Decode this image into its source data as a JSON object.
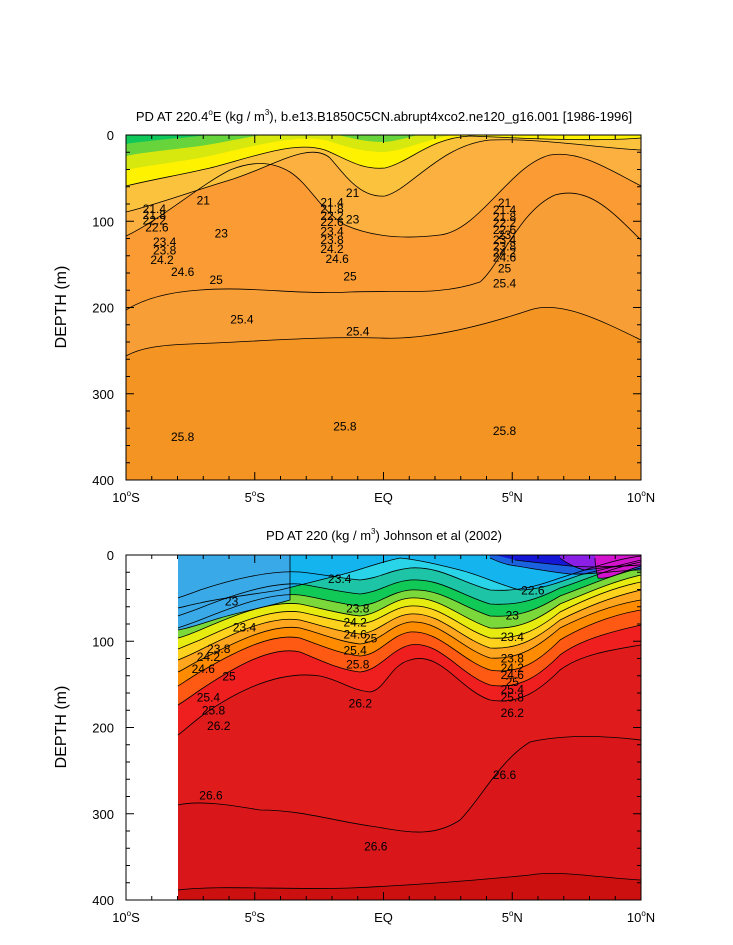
{
  "chart_data": [
    {
      "type": "contour",
      "title_main": "PD AT 220.4",
      "title_deg": "o",
      "title_mid": "E (kg / m",
      "title_sup": "3",
      "title_end": "), b.e13.B1850C5CN.abrupt4xco2.ne120_g16.001 [1986-1996]",
      "ylabel": "DEPTH (m)",
      "ylim": [
        0,
        400
      ],
      "xlim": [
        -10,
        10
      ],
      "y_ticks": [
        {
          "value": 0,
          "label": "0"
        },
        {
          "value": 100,
          "label": "100"
        },
        {
          "value": 200,
          "label": "200"
        },
        {
          "value": 300,
          "label": "300"
        },
        {
          "value": 400,
          "label": "400"
        }
      ],
      "x_ticks": [
        {
          "value": -10,
          "num": "10",
          "deg": "o",
          "hem": "S"
        },
        {
          "value": -5,
          "num": "5",
          "deg": "o",
          "hem": "S"
        },
        {
          "value": 0,
          "num": "EQ",
          "deg": "",
          "hem": ""
        },
        {
          "value": 5,
          "num": "5",
          "deg": "o",
          "hem": "N"
        },
        {
          "value": 10,
          "num": "10",
          "deg": "o",
          "hem": "N"
        }
      ],
      "data_start_lat": -10,
      "contour_labels": [
        {
          "text": "21",
          "lat": -7.0,
          "depth": 76
        },
        {
          "text": "21.4",
          "lat": -8.9,
          "depth": 86
        },
        {
          "text": "21.8",
          "lat": -8.9,
          "depth": 93
        },
        {
          "text": "22.2",
          "lat": -8.9,
          "depth": 99
        },
        {
          "text": "22.6",
          "lat": -8.8,
          "depth": 107
        },
        {
          "text": "23",
          "lat": -6.3,
          "depth": 114
        },
        {
          "text": "23.4",
          "lat": -8.5,
          "depth": 124
        },
        {
          "text": "23.8",
          "lat": -8.5,
          "depth": 134
        },
        {
          "text": "24.2",
          "lat": -8.6,
          "depth": 145
        },
        {
          "text": "24.6",
          "lat": -7.8,
          "depth": 159
        },
        {
          "text": "25",
          "lat": -6.5,
          "depth": 168
        },
        {
          "text": "25.4",
          "lat": -5.5,
          "depth": 214
        },
        {
          "text": "25.8",
          "lat": -7.8,
          "depth": 350
        },
        {
          "text": "21",
          "lat": -1.2,
          "depth": 67
        },
        {
          "text": "21.4",
          "lat": -2.0,
          "depth": 78
        },
        {
          "text": "21.8",
          "lat": -2.0,
          "depth": 86
        },
        {
          "text": "22.2",
          "lat": -2.0,
          "depth": 94
        },
        {
          "text": "22.6",
          "lat": -2.0,
          "depth": 101
        },
        {
          "text": "23",
          "lat": -1.2,
          "depth": 98
        },
        {
          "text": "23.4",
          "lat": -2.0,
          "depth": 112
        },
        {
          "text": "23.8",
          "lat": -2.0,
          "depth": 122
        },
        {
          "text": "24.2",
          "lat": -2.0,
          "depth": 132
        },
        {
          "text": "24.6",
          "lat": -1.8,
          "depth": 144
        },
        {
          "text": "25",
          "lat": -1.3,
          "depth": 164
        },
        {
          "text": "25.4",
          "lat": -1.0,
          "depth": 228
        },
        {
          "text": "25.8",
          "lat": -1.5,
          "depth": 338
        },
        {
          "text": "21",
          "lat": 4.7,
          "depth": 79
        },
        {
          "text": "21.4",
          "lat": 4.7,
          "depth": 87
        },
        {
          "text": "21.8",
          "lat": 4.7,
          "depth": 95
        },
        {
          "text": "22.2",
          "lat": 4.7,
          "depth": 102
        },
        {
          "text": "22.6",
          "lat": 4.7,
          "depth": 110
        },
        {
          "text": "23",
          "lat": 4.7,
          "depth": 116
        },
        {
          "text": "23.4",
          "lat": 4.7,
          "depth": 122
        },
        {
          "text": "23.8",
          "lat": 4.7,
          "depth": 129
        },
        {
          "text": "24.2",
          "lat": 4.7,
          "depth": 136
        },
        {
          "text": "24.6",
          "lat": 4.7,
          "depth": 142
        },
        {
          "text": "25",
          "lat": 4.7,
          "depth": 155
        },
        {
          "text": "25.4",
          "lat": 4.7,
          "depth": 172
        },
        {
          "text": "25.8",
          "lat": 4.7,
          "depth": 343
        }
      ]
    },
    {
      "type": "contour",
      "title_main": "PD AT 220 (kg / m",
      "title_deg": "",
      "title_mid": "",
      "title_sup": "3",
      "title_end": ") Johnson et al (2002)",
      "ylabel": "DEPTH (m)",
      "ylim": [
        0,
        400
      ],
      "xlim": [
        -10,
        10
      ],
      "y_ticks": [
        {
          "value": 0,
          "label": "0"
        },
        {
          "value": 100,
          "label": "100"
        },
        {
          "value": 200,
          "label": "200"
        },
        {
          "value": 300,
          "label": "300"
        },
        {
          "value": 400,
          "label": "400"
        }
      ],
      "x_ticks": [
        {
          "value": -10,
          "num": "10",
          "deg": "o",
          "hem": "S"
        },
        {
          "value": -5,
          "num": "5",
          "deg": "o",
          "hem": "S"
        },
        {
          "value": 0,
          "num": "EQ",
          "deg": "",
          "hem": ""
        },
        {
          "value": 5,
          "num": "5",
          "deg": "o",
          "hem": "N"
        },
        {
          "value": 10,
          "num": "10",
          "deg": "o",
          "hem": "N"
        }
      ],
      "data_start_lat": -8,
      "contour_labels": [
        {
          "text": "23",
          "lat": -5.9,
          "depth": 54
        },
        {
          "text": "23.4",
          "lat": -5.4,
          "depth": 84
        },
        {
          "text": "23.8",
          "lat": -6.4,
          "depth": 109
        },
        {
          "text": "24.2",
          "lat": -6.8,
          "depth": 118
        },
        {
          "text": "24.6",
          "lat": -7.0,
          "depth": 132
        },
        {
          "text": "25",
          "lat": -6.0,
          "depth": 141
        },
        {
          "text": "25.4",
          "lat": -6.8,
          "depth": 165
        },
        {
          "text": "25.8",
          "lat": -6.6,
          "depth": 180
        },
        {
          "text": "26.2",
          "lat": -6.4,
          "depth": 198
        },
        {
          "text": "26.6",
          "lat": -6.7,
          "depth": 279
        },
        {
          "text": "23.4",
          "lat": -1.7,
          "depth": 28
        },
        {
          "text": "23.8",
          "lat": -1.0,
          "depth": 62
        },
        {
          "text": "24.2",
          "lat": -1.1,
          "depth": 78
        },
        {
          "text": "24.6",
          "lat": -1.1,
          "depth": 92
        },
        {
          "text": "25",
          "lat": -0.5,
          "depth": 97
        },
        {
          "text": "25.4",
          "lat": -1.1,
          "depth": 111
        },
        {
          "text": "25.8",
          "lat": -1.0,
          "depth": 127
        },
        {
          "text": "26.2",
          "lat": -0.9,
          "depth": 172
        },
        {
          "text": "26.6",
          "lat": -0.3,
          "depth": 338
        },
        {
          "text": "22.6",
          "lat": 5.8,
          "depth": 41
        },
        {
          "text": "23",
          "lat": 5.0,
          "depth": 70
        },
        {
          "text": "23.4",
          "lat": 5.0,
          "depth": 95
        },
        {
          "text": "23.8",
          "lat": 5.0,
          "depth": 120
        },
        {
          "text": "24.2",
          "lat": 5.0,
          "depth": 131
        },
        {
          "text": "24.6",
          "lat": 5.0,
          "depth": 139
        },
        {
          "text": "25",
          "lat": 5.0,
          "depth": 147
        },
        {
          "text": "25.4",
          "lat": 5.0,
          "depth": 156
        },
        {
          "text": "25.8",
          "lat": 5.0,
          "depth": 165
        },
        {
          "text": "26.2",
          "lat": 5.0,
          "depth": 183
        },
        {
          "text": "26.6",
          "lat": 4.7,
          "depth": 255
        }
      ]
    }
  ]
}
